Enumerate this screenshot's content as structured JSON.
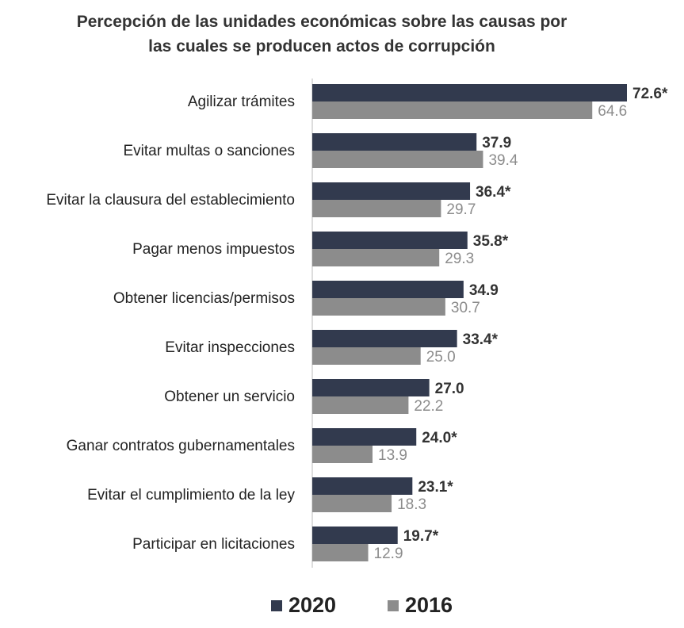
{
  "title_lines": [
    "Percepción de las unidades económicas sobre las causas por",
    "las cuales se producen actos de corrupción"
  ],
  "colors": {
    "s2020": "#323a4e",
    "s2016": "#8c8c8c",
    "label2020": "#333333",
    "label2016": "#8c8c8c",
    "axis": "#bbbbbb",
    "category": "#222222"
  },
  "legend": [
    {
      "name": "2020",
      "color": "#323a4e"
    },
    {
      "name": "2016",
      "color": "#8c8c8c"
    }
  ],
  "chart_data": {
    "type": "bar",
    "orientation": "horizontal",
    "title": "Percepción de las unidades económicas sobre las causas por las cuales se producen actos de corrupción",
    "categories": [
      "Agilizar trámites",
      "Evitar multas o sanciones",
      "Evitar la clausura del establecimiento",
      "Pagar menos impuestos",
      "Obtener licencias/permisos",
      "Evitar inspecciones",
      "Obtener un servicio",
      "Ganar contratos gubernamentales",
      "Evitar el cumplimiento de la ley",
      "Participar en licitaciones"
    ],
    "series": [
      {
        "name": "2020",
        "values": [
          72.6,
          37.9,
          36.4,
          35.8,
          34.9,
          33.4,
          27.0,
          24.0,
          23.1,
          19.7
        ],
        "labels": [
          "72.6*",
          "37.9",
          "36.4*",
          "35.8*",
          "34.9",
          "33.4*",
          "27.0",
          "24.0*",
          "23.1*",
          "19.7*"
        ]
      },
      {
        "name": "2016",
        "values": [
          64.6,
          39.4,
          29.7,
          29.3,
          30.7,
          25.0,
          22.2,
          13.9,
          18.3,
          12.9
        ],
        "labels": [
          "64.6",
          "39.4",
          "29.7",
          "29.3",
          "30.7",
          "25.0",
          "22.2",
          "13.9",
          "18.3",
          "12.9"
        ]
      }
    ],
    "xlim": [
      0,
      72.6
    ],
    "grid": false,
    "legend_position": "bottom"
  }
}
